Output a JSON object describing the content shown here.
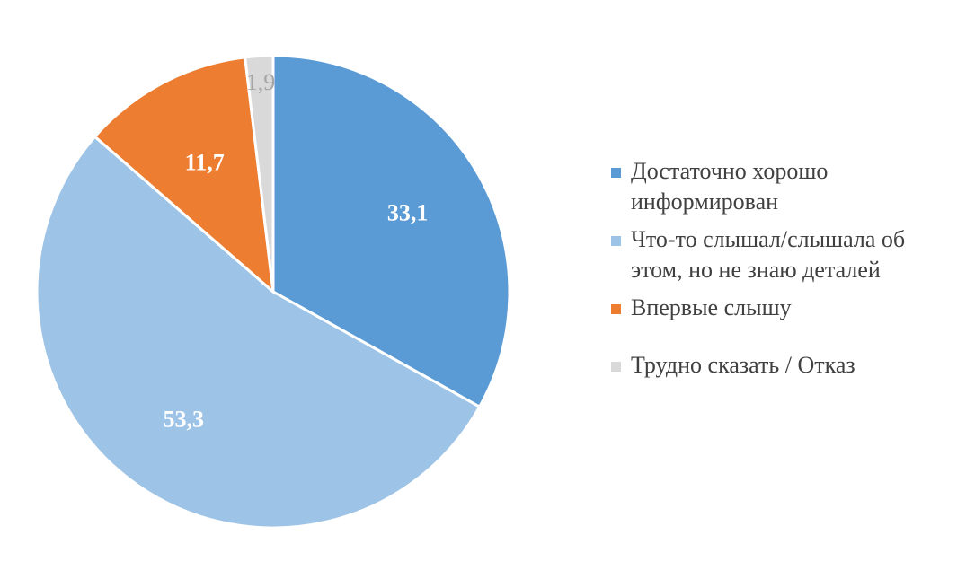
{
  "chart_data": {
    "type": "pie",
    "categories": [
      "Достаточно хорошо\nинформирован",
      "Что-то слышал/слышала об\nэтом, но не знаю деталей",
      "Впервые слышу",
      "Трудно сказать / Отказ"
    ],
    "values": [
      33.1,
      53.3,
      11.7,
      1.9
    ],
    "data_labels": [
      "33,1",
      "53,3",
      "11,7",
      "1,9"
    ],
    "colors": [
      "#5b9bd5",
      "#9dc3e6",
      "#ed7d31",
      "#d9d9d9"
    ],
    "label_colors": [
      "#ffffff",
      "#ffffff",
      "#ffffff",
      "#a6a6a6"
    ],
    "start_angle": "12 o'clock",
    "direction": "clockwise",
    "legend_position": "right"
  }
}
